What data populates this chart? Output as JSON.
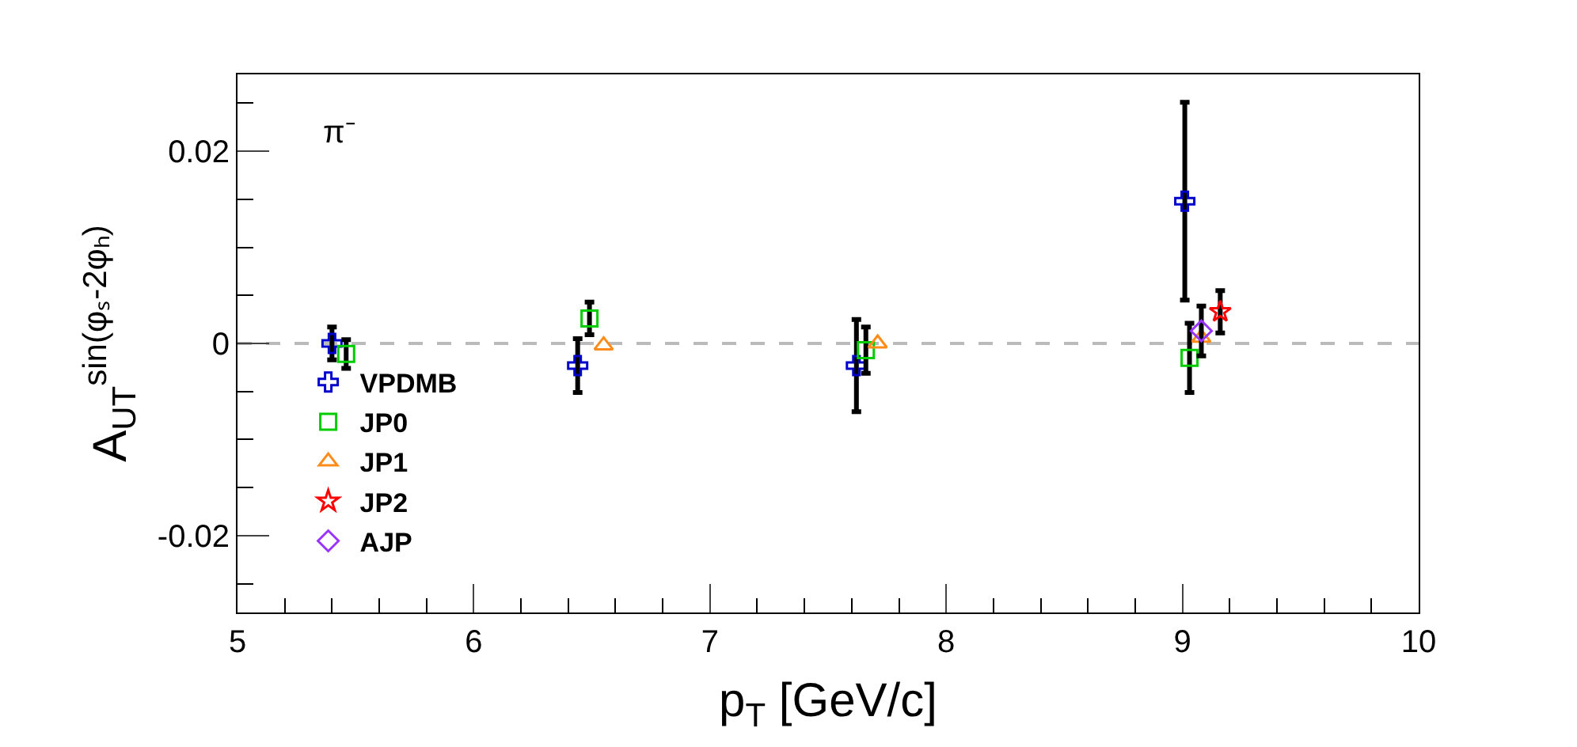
{
  "chart_data": {
    "type": "scatter",
    "xlabel": "p$_{T}$ [GeV/c]",
    "ylabel": "A$_{UT}$$^{sin(φₛ-2φₕ)}$",
    "annotations": [
      "π⁻"
    ],
    "xlim": [
      5,
      10
    ],
    "xticks": [
      5,
      6,
      7,
      8,
      9,
      10
    ],
    "ylim": [
      -0.028,
      0.028
    ],
    "yticks": [
      -0.02,
      0,
      0.02
    ],
    "grid": false,
    "legend": "bottom left",
    "ref_lines": [
      {
        "axis": "y",
        "value": 0,
        "color": "#bbbbbb",
        "line_style": "dashed"
      }
    ],
    "series": [
      {
        "name": "VPDMB",
        "color": "#0000cc",
        "marker": "cross",
        "x": [
          5.4,
          6.44,
          7.62,
          9.01
        ],
        "values": [
          0.0,
          -0.0023,
          -0.0023,
          0.0148
        ],
        "errors": [
          0.0017,
          0.0028,
          0.0048,
          0.0103
        ]
      },
      {
        "name": "JP0",
        "color": "#00cc00",
        "marker": "square",
        "x": [
          5.46,
          6.49,
          7.66,
          9.03
        ],
        "values": [
          -0.0011,
          0.0026,
          -0.0007,
          -0.0015
        ],
        "errors": [
          0.0015,
          0.0017,
          0.0024,
          0.0036
        ]
      },
      {
        "name": "JP1",
        "color": "#ff8c1a",
        "marker": "triangle",
        "x": [
          6.55,
          7.71,
          9.08
        ],
        "values": [
          -0.0002,
          0.0,
          0.0006
        ]
      },
      {
        "name": "JP2",
        "color": "#ff0000",
        "marker": "star",
        "x": [
          9.16
        ],
        "values": [
          0.0033
        ],
        "errors": [
          0.0022
        ]
      },
      {
        "name": "AJP",
        "color": "#9933ff",
        "marker": "diamond",
        "x": [
          9.08
        ],
        "values": [
          0.0013
        ],
        "errors": [
          0.0026
        ]
      }
    ]
  }
}
